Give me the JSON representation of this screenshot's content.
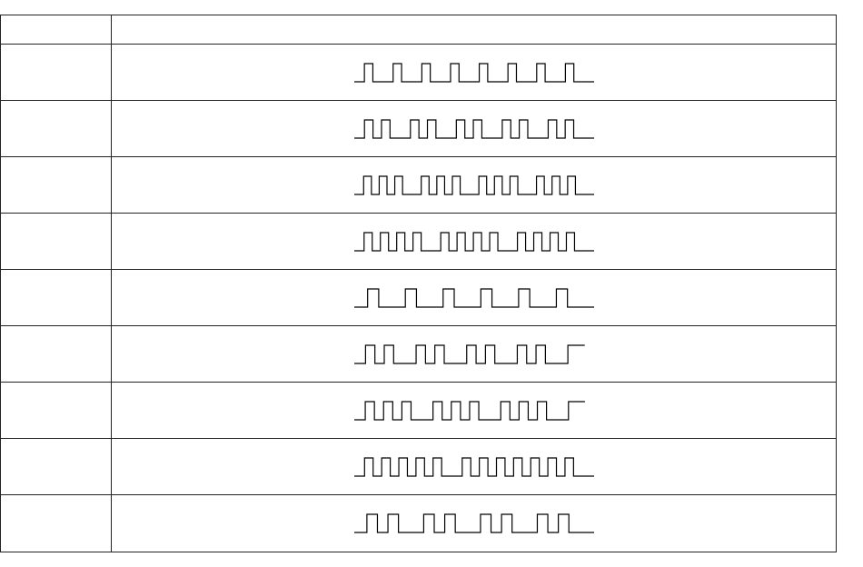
{
  "table": {
    "header": {
      "label": "",
      "pattern": ""
    },
    "rows": [
      {
        "label": "",
        "pulse_groups": [
          1,
          1,
          1,
          1,
          1,
          1,
          1,
          1
        ],
        "ends_high": false
      },
      {
        "label": "",
        "pulse_groups": [
          2,
          2,
          2,
          2,
          2
        ],
        "ends_high": false
      },
      {
        "label": "",
        "pulse_groups": [
          3,
          3,
          3,
          3
        ],
        "ends_high": false
      },
      {
        "label": "",
        "pulse_groups": [
          4,
          4,
          4
        ],
        "ends_high": false
      },
      {
        "label": "",
        "pulse_groups": [
          1,
          1,
          1,
          1,
          1,
          1
        ],
        "ends_high": false
      },
      {
        "label": "",
        "pulse_groups": [
          2,
          2,
          2,
          2,
          1
        ],
        "ends_high": true
      },
      {
        "label": "",
        "pulse_groups": [
          3,
          3,
          3,
          1
        ],
        "ends_high": true
      },
      {
        "label": "",
        "pulse_groups": [
          5,
          7
        ],
        "ends_high": false
      },
      {
        "label": "",
        "pulse_groups": [
          2,
          2,
          2,
          2
        ],
        "ends_high": false
      }
    ]
  },
  "colors": {
    "line": "#000000",
    "border": "#222222",
    "background": "#ffffff"
  }
}
